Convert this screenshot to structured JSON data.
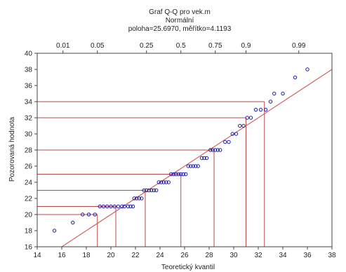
{
  "chart_data": {
    "type": "scatter",
    "title_lines": [
      "Graf Q-Q pro vek.m",
      "Normální",
      "poloha=25.6970, měřítko=4.1193"
    ],
    "xlabel": "Teoretický kvantil",
    "ylabel": "Pozorovaná hodnota",
    "xlim": [
      14,
      38
    ],
    "ylim": [
      16,
      40
    ],
    "x_ticks": [
      14,
      16,
      18,
      20,
      22,
      24,
      26,
      28,
      30,
      32,
      34,
      36,
      38
    ],
    "y_ticks": [
      16,
      18,
      20,
      22,
      24,
      26,
      28,
      30,
      32,
      34,
      36,
      38,
      40
    ],
    "top_axis_ticks": [
      {
        "label": "0.01",
        "x": 16.1
      },
      {
        "label": "0.05",
        "x": 18.9
      },
      {
        "label": "0.25",
        "x": 22.9
      },
      {
        "label": "0.5",
        "x": 25.7
      },
      {
        "label": "0.75",
        "x": 28.5
      },
      {
        "label": "0.9",
        "x": 31.0
      },
      {
        "label": "0.99",
        "x": 35.3
      }
    ],
    "reference_line": {
      "location": 25.697,
      "scale": 4.1193
    },
    "quantile_guides": [
      {
        "x": 18.9,
        "y": 20
      },
      {
        "x": 20.4,
        "y": 21
      },
      {
        "x": 22.8,
        "y": 23
      },
      {
        "x": 25.7,
        "y": 25
      },
      {
        "x": 28.4,
        "y": 28
      },
      {
        "x": 31.0,
        "y": 32
      },
      {
        "x": 32.5,
        "y": 34
      }
    ],
    "points": [
      {
        "x": 15.4,
        "y": 18
      },
      {
        "x": 16.9,
        "y": 19
      },
      {
        "x": 17.7,
        "y": 20
      },
      {
        "x": 18.2,
        "y": 20
      },
      {
        "x": 18.7,
        "y": 20
      },
      {
        "x": 19.1,
        "y": 21
      },
      {
        "x": 19.4,
        "y": 21
      },
      {
        "x": 19.7,
        "y": 21
      },
      {
        "x": 20.0,
        "y": 21
      },
      {
        "x": 20.3,
        "y": 21
      },
      {
        "x": 20.6,
        "y": 21
      },
      {
        "x": 20.9,
        "y": 21
      },
      {
        "x": 21.1,
        "y": 21
      },
      {
        "x": 21.4,
        "y": 21
      },
      {
        "x": 21.6,
        "y": 21
      },
      {
        "x": 21.8,
        "y": 21
      },
      {
        "x": 21.9,
        "y": 22
      },
      {
        "x": 22.1,
        "y": 22
      },
      {
        "x": 22.3,
        "y": 22
      },
      {
        "x": 22.5,
        "y": 22
      },
      {
        "x": 22.7,
        "y": 23
      },
      {
        "x": 22.9,
        "y": 23
      },
      {
        "x": 23.1,
        "y": 23
      },
      {
        "x": 23.3,
        "y": 23
      },
      {
        "x": 23.5,
        "y": 23
      },
      {
        "x": 23.7,
        "y": 23
      },
      {
        "x": 23.9,
        "y": 24
      },
      {
        "x": 24.1,
        "y": 24
      },
      {
        "x": 24.3,
        "y": 24
      },
      {
        "x": 24.5,
        "y": 24
      },
      {
        "x": 24.7,
        "y": 24
      },
      {
        "x": 24.9,
        "y": 25
      },
      {
        "x": 25.1,
        "y": 25
      },
      {
        "x": 25.3,
        "y": 25
      },
      {
        "x": 25.5,
        "y": 25
      },
      {
        "x": 25.7,
        "y": 25
      },
      {
        "x": 25.9,
        "y": 25
      },
      {
        "x": 26.1,
        "y": 25
      },
      {
        "x": 26.3,
        "y": 26
      },
      {
        "x": 26.5,
        "y": 26
      },
      {
        "x": 26.7,
        "y": 26
      },
      {
        "x": 26.9,
        "y": 26
      },
      {
        "x": 27.1,
        "y": 26
      },
      {
        "x": 27.4,
        "y": 27
      },
      {
        "x": 27.6,
        "y": 27
      },
      {
        "x": 27.8,
        "y": 27
      },
      {
        "x": 28.1,
        "y": 28
      },
      {
        "x": 28.3,
        "y": 28
      },
      {
        "x": 28.5,
        "y": 28
      },
      {
        "x": 28.7,
        "y": 28
      },
      {
        "x": 28.9,
        "y": 28
      },
      {
        "x": 29.3,
        "y": 29
      },
      {
        "x": 29.6,
        "y": 29
      },
      {
        "x": 29.9,
        "y": 30
      },
      {
        "x": 30.2,
        "y": 30
      },
      {
        "x": 30.5,
        "y": 31
      },
      {
        "x": 30.8,
        "y": 31
      },
      {
        "x": 31.1,
        "y": 32
      },
      {
        "x": 31.4,
        "y": 32
      },
      {
        "x": 31.8,
        "y": 33
      },
      {
        "x": 32.2,
        "y": 33
      },
      {
        "x": 32.6,
        "y": 33
      },
      {
        "x": 33.0,
        "y": 34
      },
      {
        "x": 33.3,
        "y": 35
      },
      {
        "x": 34.0,
        "y": 35
      },
      {
        "x": 35.0,
        "y": 37
      },
      {
        "x": 36.0,
        "y": 38
      }
    ],
    "colors": {
      "point": "#1a1aa6",
      "reference_line": "#d16060",
      "guide_line": "#b84a4a",
      "axis": "#444444",
      "text": "#222222"
    }
  }
}
